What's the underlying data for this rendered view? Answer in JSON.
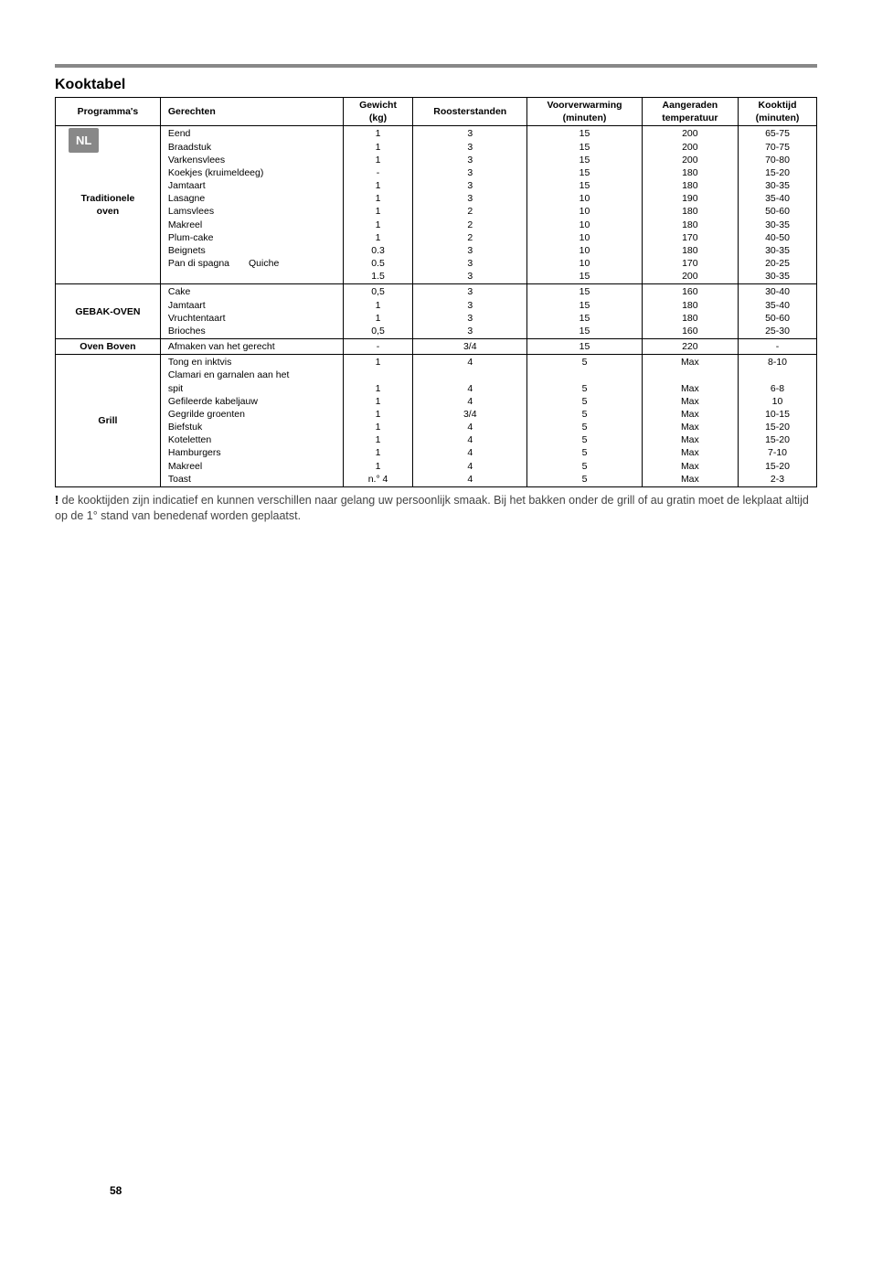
{
  "lang_tab": "NL",
  "title": "Kooktabel",
  "headers": {
    "program": "Programma's",
    "dishes": "Gerechten",
    "weight_top": "Gewicht",
    "weight_bot": "(kg)",
    "racks": "Roosterstanden",
    "preheat_top": "Voorverwarming",
    "preheat_bot": "(minuten)",
    "temp_top": "Aangeraden",
    "temp_bot": "temperatuur",
    "time_top": "Kooktijd",
    "time_bot": "(minuten)"
  },
  "groups": [
    {
      "program": "Traditionele oven",
      "rows": [
        {
          "dish": "Eend",
          "weight": "1",
          "rack": "3",
          "preheat": "15",
          "temp": "200",
          "time": "65-75"
        },
        {
          "dish": "Braadstuk",
          "weight": "1",
          "rack": "3",
          "preheat": "15",
          "temp": "200",
          "time": "70-75"
        },
        {
          "dish": "Varkensvlees",
          "weight": "1",
          "rack": "3",
          "preheat": "15",
          "temp": "200",
          "time": "70-80"
        },
        {
          "dish": "Koekjes (kruimeldeeg)",
          "weight": "-",
          "rack": "3",
          "preheat": "15",
          "temp": "180",
          "time": "15-20"
        },
        {
          "dish": "Jamtaart",
          "weight": "1",
          "rack": "3",
          "preheat": "15",
          "temp": "180",
          "time": "30-35"
        },
        {
          "dish": "Lasagne",
          "weight": "1",
          "rack": "3",
          "preheat": "10",
          "temp": "190",
          "time": "35-40"
        },
        {
          "dish": "Lamsvlees",
          "weight": "1",
          "rack": "2",
          "preheat": "10",
          "temp": "180",
          "time": "50-60"
        },
        {
          "dish": "Makreel",
          "weight": "1",
          "rack": "2",
          "preheat": "10",
          "temp": "180",
          "time": "30-35"
        },
        {
          "dish": "Plum-cake",
          "weight": "1",
          "rack": "2",
          "preheat": "10",
          "temp": "170",
          "time": "40-50"
        },
        {
          "dish": "Beignets",
          "weight": "0.3",
          "rack": "3",
          "preheat": "10",
          "temp": "180",
          "time": "30-35"
        },
        {
          "dish": "Pan di spagna  Quiche",
          "weight": "0.5",
          "rack": "3",
          "preheat": "10",
          "temp": "170",
          "time": "20-25"
        },
        {
          "dish": "",
          "weight": "1.5",
          "rack": "3",
          "preheat": "15",
          "temp": "200",
          "time": "30-35"
        }
      ]
    },
    {
      "program": "GEBAK-OVEN",
      "rows": [
        {
          "dish": "Cake",
          "weight": "0,5",
          "rack": "3",
          "preheat": "15",
          "temp": "160",
          "time": "30-40"
        },
        {
          "dish": "Jamtaart",
          "weight": "1",
          "rack": "3",
          "preheat": "15",
          "temp": "180",
          "time": "35-40"
        },
        {
          "dish": "Vruchtentaart",
          "weight": "1",
          "rack": "3",
          "preheat": "15",
          "temp": "180",
          "time": "50-60"
        },
        {
          "dish": "Brioches",
          "weight": "0,5",
          "rack": "3",
          "preheat": "15",
          "temp": "160",
          "time": "25-30"
        }
      ]
    },
    {
      "program": "Oven Boven",
      "rows": [
        {
          "dish": "Afmaken van het gerecht",
          "weight": "-",
          "rack": "3/4",
          "preheat": "15",
          "temp": "220",
          "time": "-"
        }
      ]
    },
    {
      "program": "Grill",
      "rows": [
        {
          "dish": "Tong en inktvis",
          "weight": "1",
          "rack": "4",
          "preheat": "5",
          "temp": "Max",
          "time": "8-10"
        },
        {
          "dish": "Clamari en garnalen aan het",
          "weight": "",
          "rack": "",
          "preheat": "",
          "temp": "",
          "time": ""
        },
        {
          "dish": "spit",
          "weight": "1",
          "rack": "4",
          "preheat": "5",
          "temp": "Max",
          "time": "6-8"
        },
        {
          "dish": "Gefileerde kabeljauw",
          "weight": "1",
          "rack": "4",
          "preheat": "5",
          "temp": "Max",
          "time": "10"
        },
        {
          "dish": "Gegrilde groenten",
          "weight": "1",
          "rack": "3/4",
          "preheat": "5",
          "temp": "Max",
          "time": "10-15"
        },
        {
          "dish": "Biefstuk",
          "weight": "1",
          "rack": "4",
          "preheat": "5",
          "temp": "Max",
          "time": "15-20"
        },
        {
          "dish": "Koteletten",
          "weight": "1",
          "rack": "4",
          "preheat": "5",
          "temp": "Max",
          "time": "15-20"
        },
        {
          "dish": "Hamburgers",
          "weight": "1",
          "rack": "4",
          "preheat": "5",
          "temp": "Max",
          "time": "7-10"
        },
        {
          "dish": "Makreel",
          "weight": "1",
          "rack": "4",
          "preheat": "5",
          "temp": "Max",
          "time": "15-20"
        },
        {
          "dish": "Toast",
          "weight": "n.° 4",
          "rack": "4",
          "preheat": "5",
          "temp": "Max",
          "time": "2-3"
        }
      ]
    }
  ],
  "footnote_excl": "!",
  "footnote_text": " de kooktijden zijn indicatief en kunnen verschillen naar gelang uw persoonlijk smaak. Bij het bakken onder de grill of au gratin moet de lekplaat altijd op de 1° stand van benedenaf worden geplaatst.",
  "page_number": "58"
}
